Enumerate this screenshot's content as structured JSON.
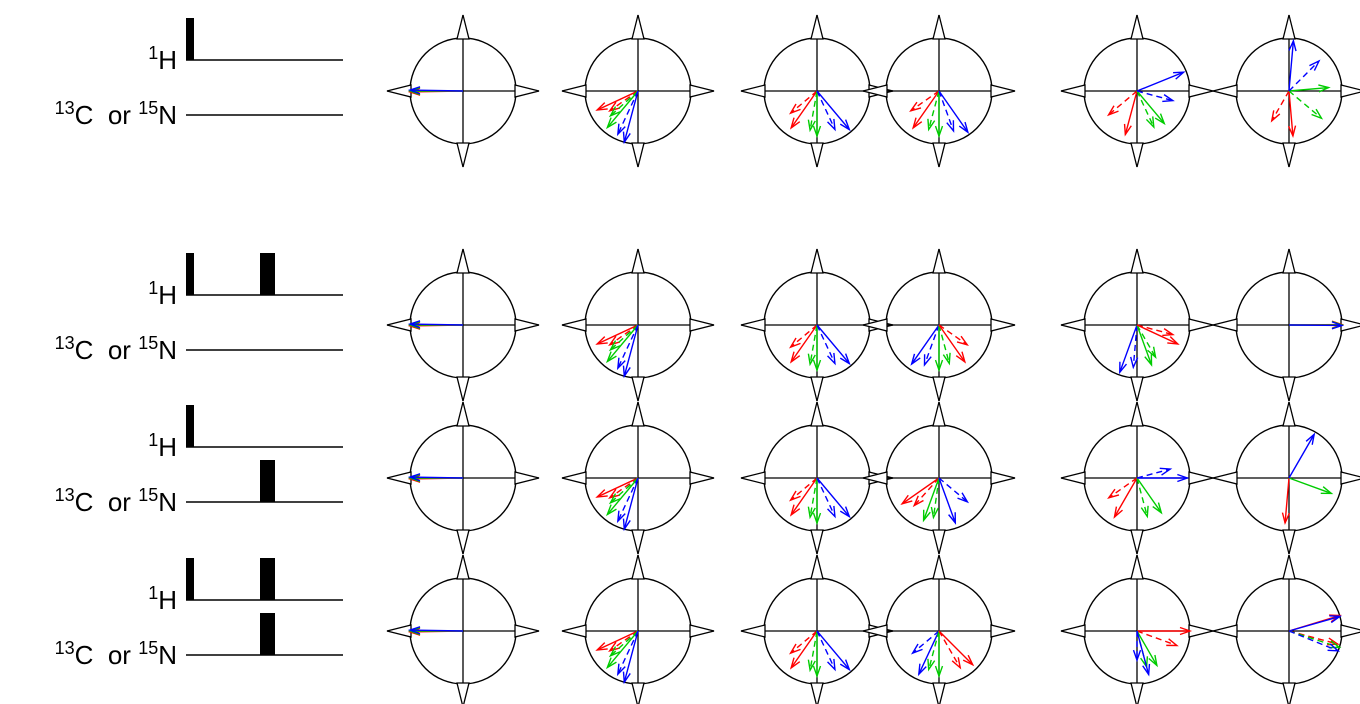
{
  "labels": {
    "top_sup": "1",
    "top_base": "H",
    "bottom_sup1": "13",
    "bottom_mid": "C  or ",
    "bottom_sup2": "15",
    "bottom_base": "N"
  },
  "colors": {
    "red": "#ff0000",
    "green": "#00cc00",
    "blue": "#0000ff",
    "black": "#000000"
  },
  "rows": [
    {
      "id": "row1",
      "proton_pulses": [
        "excitation"
      ],
      "hetero_pulses": [],
      "diagrams": [
        [
          {
            "c": "red",
            "a": 181,
            "l": 1.0
          },
          {
            "c": "green",
            "a": 180,
            "l": 1.0
          },
          {
            "c": "blue",
            "a": 179,
            "l": 1.0
          }
        ],
        [
          {
            "c": "red",
            "a": 205,
            "l": 0.85
          },
          {
            "c": "red",
            "a": 215,
            "l": 0.65,
            "d": true
          },
          {
            "c": "green",
            "a": 230,
            "l": 0.9
          },
          {
            "c": "green",
            "a": 222,
            "l": 0.7,
            "d": true
          },
          {
            "c": "blue",
            "a": 255,
            "l": 1.0
          },
          {
            "c": "blue",
            "a": 245,
            "l": 0.9,
            "d": true
          }
        ],
        [
          {
            "c": "red",
            "a": 235,
            "l": 0.85
          },
          {
            "c": "red",
            "a": 220,
            "l": 0.65,
            "d": true
          },
          {
            "c": "green",
            "a": 270,
            "l": 0.85
          },
          {
            "c": "green",
            "a": 260,
            "l": 0.75,
            "d": true
          },
          {
            "c": "blue",
            "a": 310,
            "l": 0.95
          },
          {
            "c": "blue",
            "a": 295,
            "l": 0.8,
            "d": true
          }
        ],
        [
          {
            "c": "red",
            "a": 235,
            "l": 0.85
          },
          {
            "c": "red",
            "a": 215,
            "l": 0.65,
            "d": true
          },
          {
            "c": "green",
            "a": 270,
            "l": 0.85
          },
          {
            "c": "green",
            "a": 255,
            "l": 0.75,
            "d": true
          },
          {
            "c": "blue",
            "a": 305,
            "l": 0.95
          },
          {
            "c": "blue",
            "a": 290,
            "l": 0.8,
            "d": true
          }
        ],
        [
          {
            "c": "red",
            "a": 255,
            "l": 0.85
          },
          {
            "c": "red",
            "a": 220,
            "l": 0.7,
            "d": true
          },
          {
            "c": "green",
            "a": 310,
            "l": 0.8
          },
          {
            "c": "green",
            "a": 295,
            "l": 0.75,
            "d": true
          },
          {
            "c": "blue",
            "a": 22,
            "l": 0.95
          },
          {
            "c": "blue",
            "a": 345,
            "l": 0.7,
            "d": true
          }
        ],
        [
          {
            "c": "red",
            "a": 275,
            "l": 0.85
          },
          {
            "c": "red",
            "a": 240,
            "l": 0.65,
            "d": true
          },
          {
            "c": "green",
            "a": 5,
            "l": 0.75
          },
          {
            "c": "green",
            "a": 320,
            "l": 0.8,
            "d": true
          },
          {
            "c": "blue",
            "a": 85,
            "l": 0.95
          },
          {
            "c": "blue",
            "a": 45,
            "l": 0.8,
            "d": true
          }
        ]
      ]
    },
    {
      "id": "row2",
      "proton_pulses": [
        "excitation",
        "refocus"
      ],
      "hetero_pulses": [],
      "diagrams": [
        [
          {
            "c": "red",
            "a": 181,
            "l": 1.0
          },
          {
            "c": "green",
            "a": 180,
            "l": 1.0
          },
          {
            "c": "blue",
            "a": 179,
            "l": 1.0
          }
        ],
        [
          {
            "c": "red",
            "a": 205,
            "l": 0.85
          },
          {
            "c": "red",
            "a": 215,
            "l": 0.65,
            "d": true
          },
          {
            "c": "green",
            "a": 230,
            "l": 0.9
          },
          {
            "c": "green",
            "a": 222,
            "l": 0.7,
            "d": true
          },
          {
            "c": "blue",
            "a": 255,
            "l": 1.0
          },
          {
            "c": "blue",
            "a": 245,
            "l": 0.9,
            "d": true
          }
        ],
        [
          {
            "c": "red",
            "a": 235,
            "l": 0.85
          },
          {
            "c": "red",
            "a": 220,
            "l": 0.65,
            "d": true
          },
          {
            "c": "green",
            "a": 270,
            "l": 0.85
          },
          {
            "c": "green",
            "a": 260,
            "l": 0.75,
            "d": true
          },
          {
            "c": "blue",
            "a": 310,
            "l": 0.95
          },
          {
            "c": "blue",
            "a": 295,
            "l": 0.8,
            "d": true
          }
        ],
        [
          {
            "c": "blue",
            "a": 235,
            "l": 0.9
          },
          {
            "c": "blue",
            "a": 250,
            "l": 0.8,
            "d": true
          },
          {
            "c": "green",
            "a": 270,
            "l": 0.85
          },
          {
            "c": "green",
            "a": 285,
            "l": 0.75,
            "d": true
          },
          {
            "c": "red",
            "a": 305,
            "l": 0.85
          },
          {
            "c": "red",
            "a": 325,
            "l": 0.65,
            "d": true
          }
        ],
        [
          {
            "c": "blue",
            "a": 250,
            "l": 0.95
          },
          {
            "c": "blue",
            "a": 265,
            "l": 0.8,
            "d": true
          },
          {
            "c": "green",
            "a": 290,
            "l": 0.8
          },
          {
            "c": "green",
            "a": 300,
            "l": 0.7,
            "d": true
          },
          {
            "c": "red",
            "a": 335,
            "l": 0.85
          },
          {
            "c": "red",
            "a": 345,
            "l": 0.7,
            "d": true
          }
        ],
        [
          {
            "c": "red",
            "a": 0.5,
            "l": 1.0
          },
          {
            "c": "green",
            "a": 0,
            "l": 1.0
          },
          {
            "c": "blue",
            "a": -0.5,
            "l": 1.0
          }
        ]
      ]
    },
    {
      "id": "row3",
      "proton_pulses": [
        "excitation"
      ],
      "hetero_pulses": [
        "refocus"
      ],
      "diagrams": [
        [
          {
            "c": "red",
            "a": 181,
            "l": 1.0
          },
          {
            "c": "green",
            "a": 180,
            "l": 1.0
          },
          {
            "c": "blue",
            "a": 179,
            "l": 1.0
          }
        ],
        [
          {
            "c": "red",
            "a": 205,
            "l": 0.85
          },
          {
            "c": "red",
            "a": 215,
            "l": 0.65,
            "d": true
          },
          {
            "c": "green",
            "a": 230,
            "l": 0.9
          },
          {
            "c": "green",
            "a": 222,
            "l": 0.7,
            "d": true
          },
          {
            "c": "blue",
            "a": 255,
            "l": 1.0
          },
          {
            "c": "blue",
            "a": 245,
            "l": 0.9,
            "d": true
          }
        ],
        [
          {
            "c": "red",
            "a": 235,
            "l": 0.85
          },
          {
            "c": "red",
            "a": 220,
            "l": 0.65,
            "d": true
          },
          {
            "c": "green",
            "a": 270,
            "l": 0.85
          },
          {
            "c": "green",
            "a": 260,
            "l": 0.75,
            "d": true
          },
          {
            "c": "blue",
            "a": 310,
            "l": 0.95
          },
          {
            "c": "blue",
            "a": 295,
            "l": 0.8,
            "d": true
          }
        ],
        [
          {
            "c": "red",
            "a": 215,
            "l": 0.85
          },
          {
            "c": "red",
            "a": 228,
            "l": 0.7,
            "d": true
          },
          {
            "c": "green",
            "a": 250,
            "l": 0.85
          },
          {
            "c": "green",
            "a": 262,
            "l": 0.75,
            "d": true
          },
          {
            "c": "blue",
            "a": 290,
            "l": 0.9
          },
          {
            "c": "blue",
            "a": 320,
            "l": 0.7,
            "d": true
          }
        ],
        [
          {
            "c": "red",
            "a": 240,
            "l": 0.85
          },
          {
            "c": "red",
            "a": 215,
            "l": 0.65,
            "d": true
          },
          {
            "c": "green",
            "a": 305,
            "l": 0.8
          },
          {
            "c": "green",
            "a": 285,
            "l": 0.75,
            "d": true
          },
          {
            "c": "blue",
            "a": 0,
            "l": 0.95
          },
          {
            "c": "blue",
            "a": 15,
            "l": 0.65,
            "d": true
          }
        ],
        [
          {
            "c": "red",
            "a": 265,
            "l": 0.85
          },
          {
            "c": "green",
            "a": 340,
            "l": 0.85
          },
          {
            "c": "blue",
            "a": 60,
            "l": 0.95
          }
        ]
      ]
    },
    {
      "id": "row4",
      "proton_pulses": [
        "excitation",
        "refocus"
      ],
      "hetero_pulses": [
        "refocus"
      ],
      "diagrams": [
        [
          {
            "c": "red",
            "a": 181,
            "l": 1.0
          },
          {
            "c": "green",
            "a": 180,
            "l": 1.0
          },
          {
            "c": "blue",
            "a": 179,
            "l": 1.0
          }
        ],
        [
          {
            "c": "red",
            "a": 205,
            "l": 0.85
          },
          {
            "c": "red",
            "a": 215,
            "l": 0.65,
            "d": true
          },
          {
            "c": "green",
            "a": 230,
            "l": 0.9
          },
          {
            "c": "green",
            "a": 222,
            "l": 0.7,
            "d": true
          },
          {
            "c": "blue",
            "a": 255,
            "l": 1.0
          },
          {
            "c": "blue",
            "a": 245,
            "l": 0.9,
            "d": true
          }
        ],
        [
          {
            "c": "red",
            "a": 235,
            "l": 0.85
          },
          {
            "c": "red",
            "a": 220,
            "l": 0.65,
            "d": true
          },
          {
            "c": "green",
            "a": 270,
            "l": 0.85
          },
          {
            "c": "green",
            "a": 260,
            "l": 0.75,
            "d": true
          },
          {
            "c": "blue",
            "a": 310,
            "l": 0.95
          },
          {
            "c": "blue",
            "a": 295,
            "l": 0.8,
            "d": true
          }
        ],
        [
          {
            "c": "blue",
            "a": 245,
            "l": 0.9
          },
          {
            "c": "blue",
            "a": 220,
            "l": 0.65,
            "d": true
          },
          {
            "c": "green",
            "a": 270,
            "l": 0.85
          },
          {
            "c": "green",
            "a": 255,
            "l": 0.75,
            "d": true
          },
          {
            "c": "red",
            "a": 315,
            "l": 0.9
          },
          {
            "c": "red",
            "a": 300,
            "l": 0.8,
            "d": true
          }
        ],
        [
          {
            "c": "red",
            "a": 0,
            "l": 1.0
          },
          {
            "c": "red",
            "a": 340,
            "l": 0.8,
            "d": true
          },
          {
            "c": "green",
            "a": 300,
            "l": 0.75
          },
          {
            "c": "green",
            "a": 285,
            "l": 0.7,
            "d": true
          },
          {
            "c": "blue",
            "a": 285,
            "l": 0.85
          },
          {
            "c": "blue",
            "a": 270,
            "l": 0.55,
            "d": true
          }
        ],
        [
          {
            "c": "red",
            "a": 17,
            "l": 1.0
          },
          {
            "c": "blue",
            "a": 16,
            "l": 1.0
          },
          {
            "c": "red",
            "a": 345,
            "l": 0.95,
            "d": true
          },
          {
            "c": "green",
            "a": 342,
            "l": 1.0,
            "d": true
          },
          {
            "c": "blue",
            "a": 338,
            "l": 1.0,
            "d": true
          }
        ]
      ]
    }
  ]
}
